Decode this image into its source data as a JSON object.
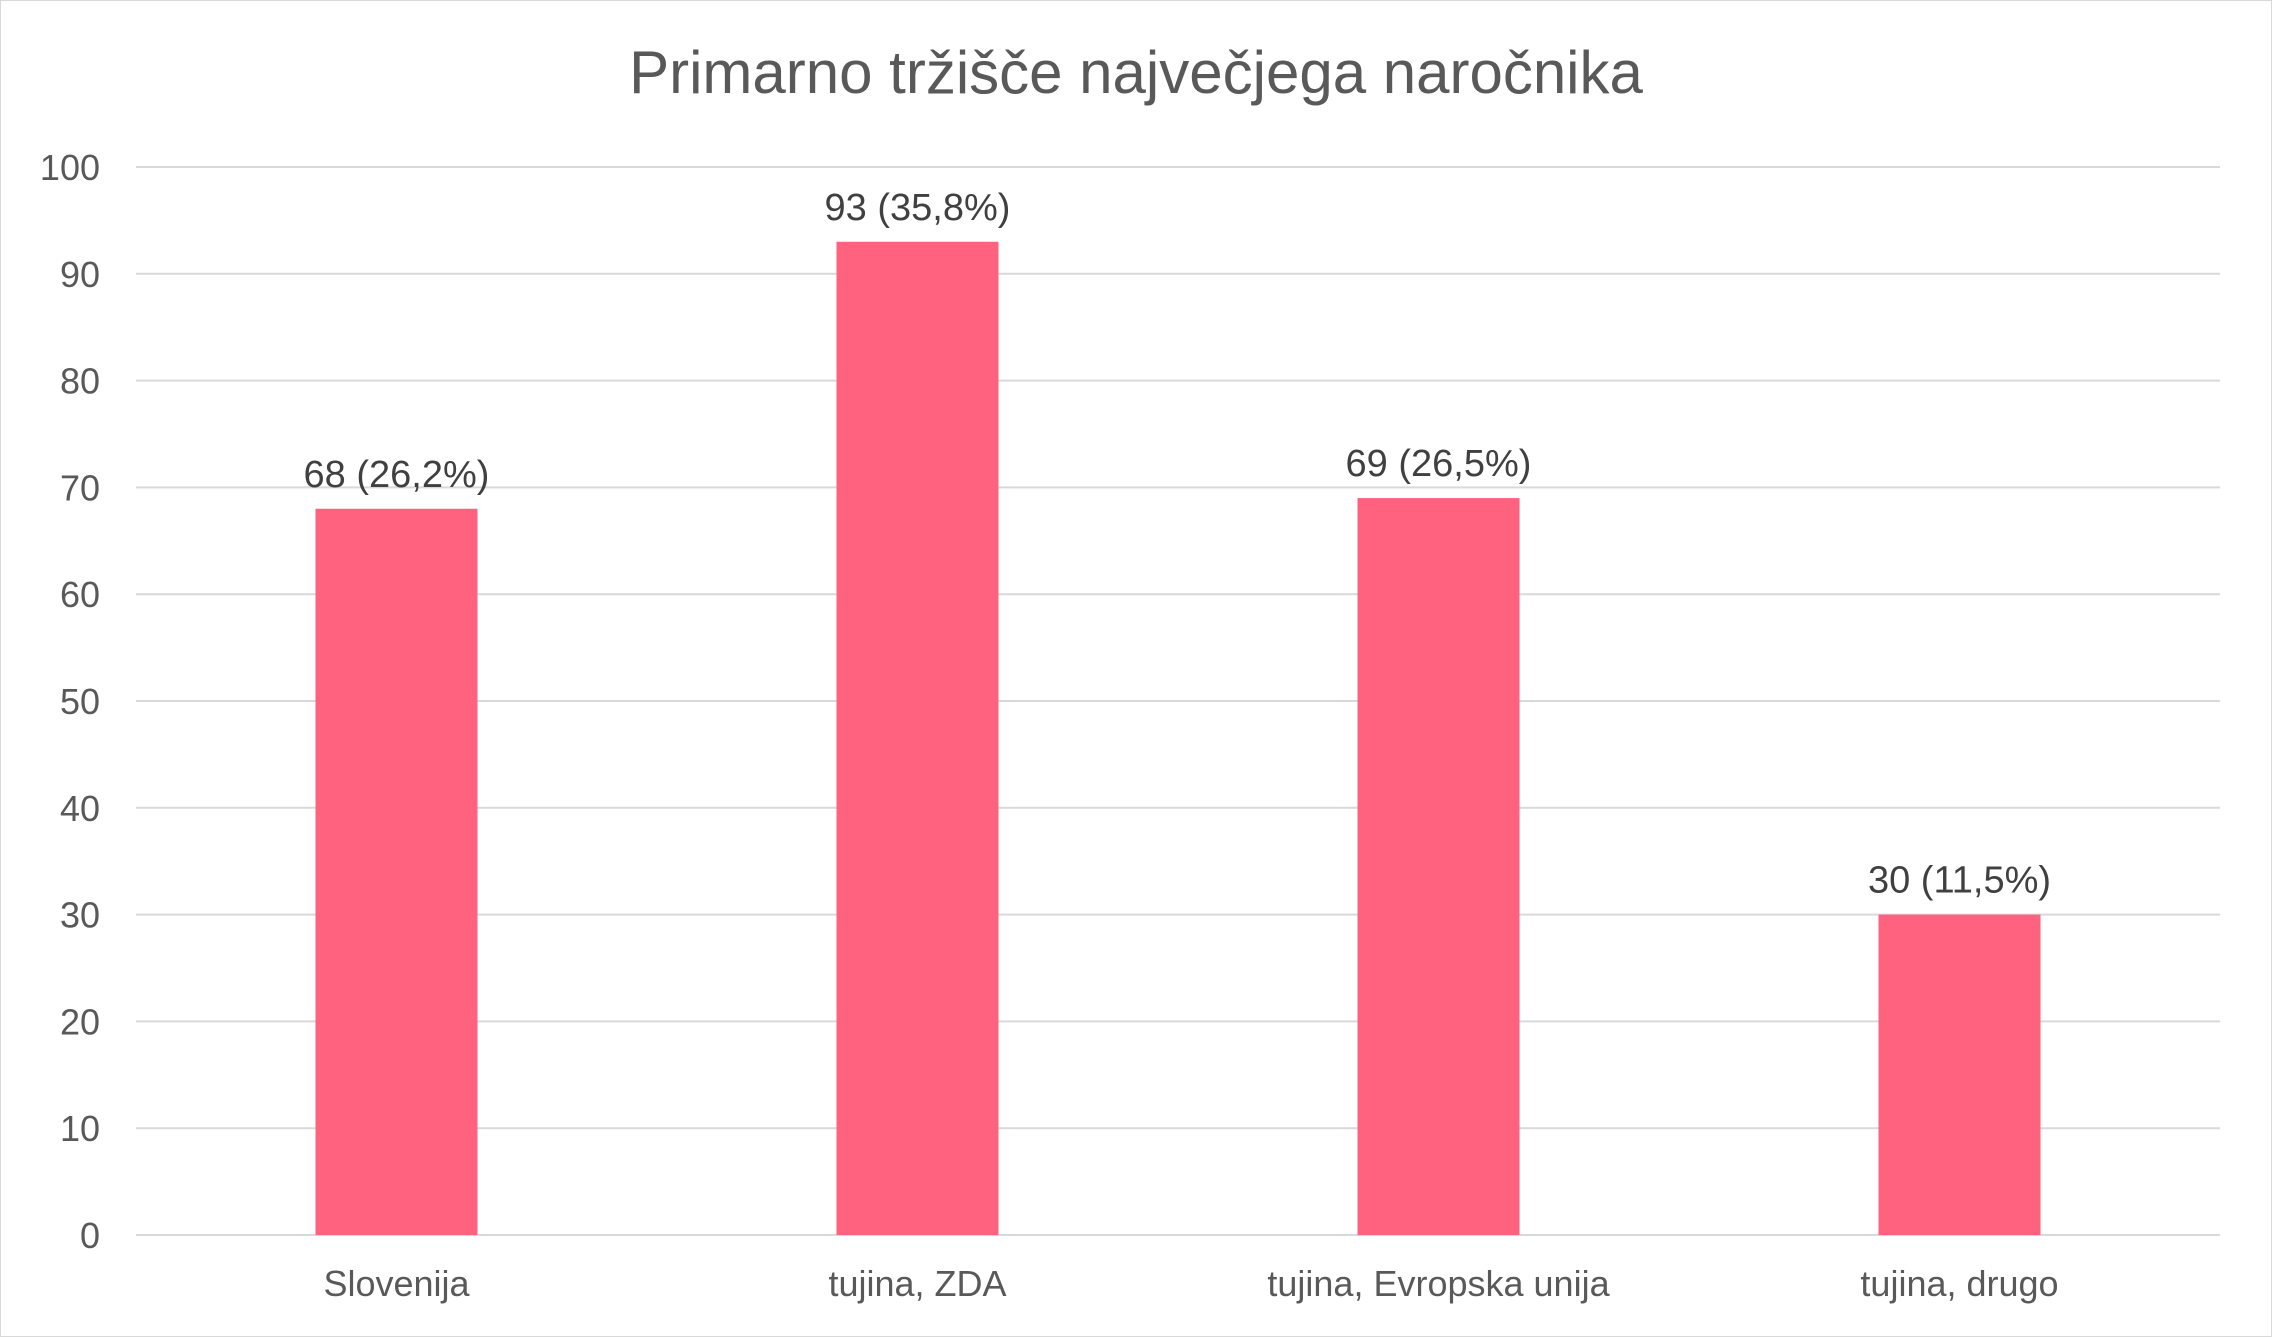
{
  "chart_data": {
    "type": "bar",
    "title": "Primarno tržišče največjega naročnika",
    "xlabel": "",
    "ylabel": "",
    "categories": [
      "Slovenija",
      "tujina, ZDA",
      "tujina, Evropska unija",
      "tujina, drugo"
    ],
    "values": [
      68,
      93,
      69,
      30
    ],
    "data_labels": [
      "68 (26,2%)",
      "93 (35,8%)",
      "69 (26,5%)",
      "30 (11,5%)"
    ],
    "ylim": [
      0,
      100
    ],
    "yticks": [
      0,
      10,
      20,
      30,
      40,
      50,
      60,
      70,
      80,
      90,
      100
    ],
    "grid": true,
    "legend": "none",
    "colors": {
      "bar": "#ff627e",
      "grid": "#d9d9d9",
      "text": "#595959",
      "data_label": "#404040"
    }
  }
}
